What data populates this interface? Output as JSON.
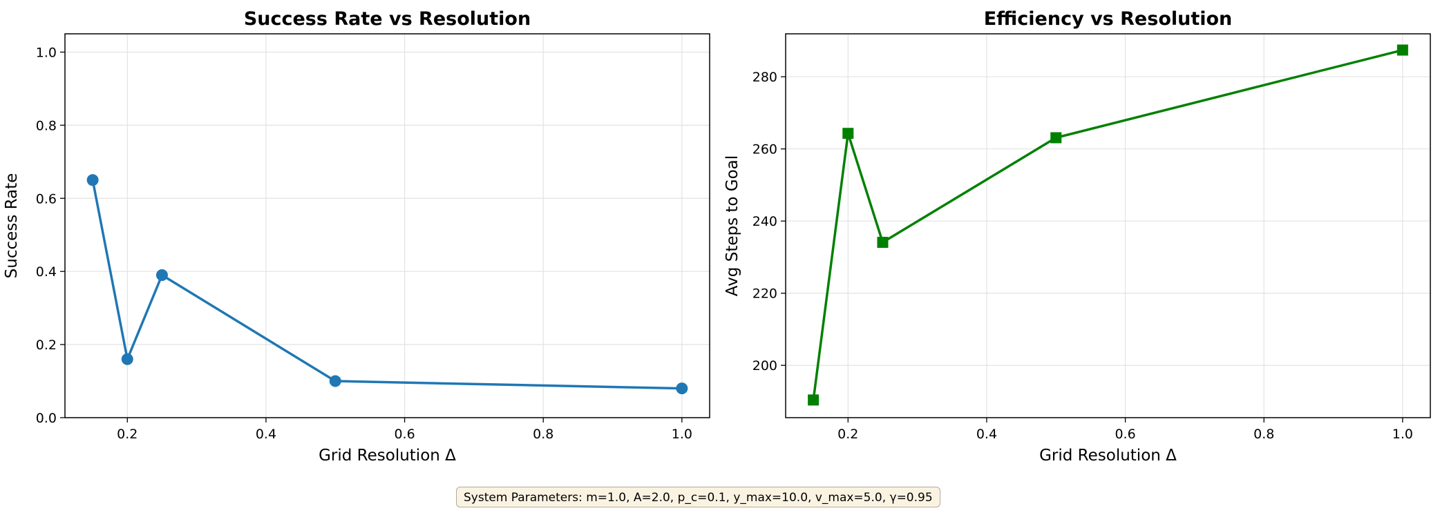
{
  "chart_data": [
    {
      "type": "line",
      "title": "Success Rate vs Resolution",
      "xlabel": "Grid Resolution Δ",
      "ylabel": "Success Rate",
      "xlim": [
        0.11,
        1.04
      ],
      "ylim": [
        0.0,
        1.05
      ],
      "x_ticks": [
        0.2,
        0.4,
        0.6,
        0.8,
        1.0
      ],
      "y_ticks": [
        0.0,
        0.2,
        0.4,
        0.6,
        0.8,
        1.0
      ],
      "x_tick_labels": [
        "0.2",
        "0.4",
        "0.6",
        "0.8",
        "1.0"
      ],
      "y_tick_labels": [
        "0.0",
        "0.2",
        "0.4",
        "0.6",
        "0.8",
        "1.0"
      ],
      "grid": true,
      "marker": "circle",
      "color": "#1f77b4",
      "series": [
        {
          "x": [
            0.15,
            0.2,
            0.25,
            0.5,
            1.0
          ],
          "y": [
            0.65,
            0.16,
            0.39,
            0.1,
            0.08
          ]
        }
      ]
    },
    {
      "type": "line",
      "title": "Efficiency vs Resolution",
      "xlabel": "Grid Resolution Δ",
      "ylabel": "Avg Steps to Goal",
      "xlim": [
        0.11,
        1.04
      ],
      "ylim": [
        185.5,
        291.9
      ],
      "x_ticks": [
        0.2,
        0.4,
        0.6,
        0.8,
        1.0
      ],
      "y_ticks": [
        200,
        220,
        240,
        260,
        280
      ],
      "x_tick_labels": [
        "0.2",
        "0.4",
        "0.6",
        "0.8",
        "1.0"
      ],
      "y_tick_labels": [
        "200",
        "220",
        "240",
        "260",
        "280"
      ],
      "grid": true,
      "marker": "square",
      "color": "#008000",
      "series": [
        {
          "x": [
            0.15,
            0.2,
            0.25,
            0.5,
            1.0
          ],
          "y": [
            190.4,
            264.3,
            234.1,
            263.1,
            287.4
          ]
        }
      ]
    }
  ],
  "footer": {
    "text": "System Parameters: m=1.0, A=2.0, p_c=0.1, y_max=10.0, v_max=5.0, γ=0.95"
  }
}
